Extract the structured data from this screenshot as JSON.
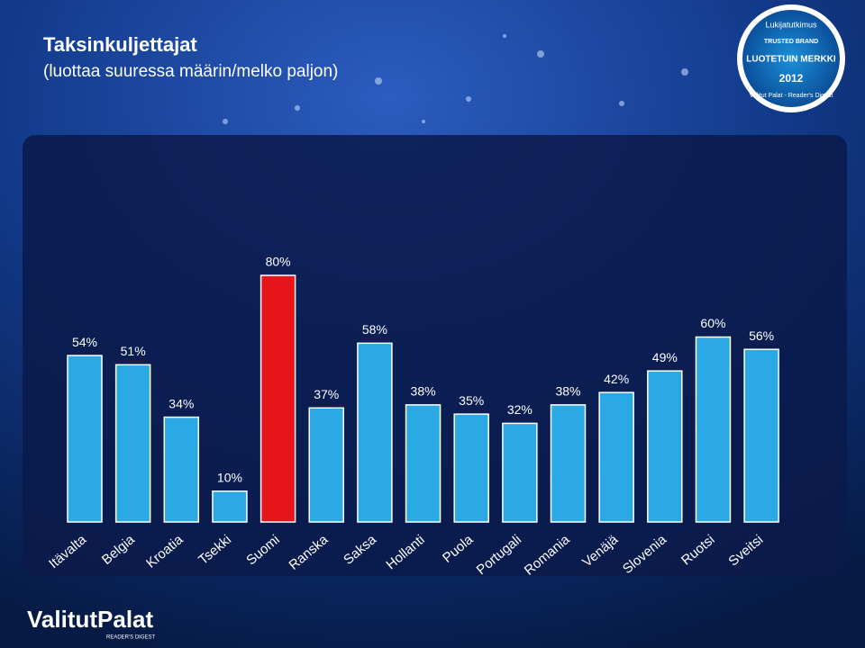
{
  "chart_data": {
    "type": "bar",
    "title": "Taksinkuljettajat",
    "subtitle": "(luottaa suuressa määrin/melko paljon)",
    "categories": [
      "Itävalta",
      "Belgia",
      "Kroatia",
      "Tsekki",
      "Suomi",
      "Ranska",
      "Saksa",
      "Hollanti",
      "Puola",
      "Portugali",
      "Romania",
      "Venäjä",
      "Slovenia",
      "Ruotsi",
      "Sveitsi"
    ],
    "values": [
      54,
      51,
      34,
      10,
      80,
      37,
      58,
      38,
      35,
      32,
      38,
      42,
      49,
      60,
      56
    ],
    "value_labels": [
      "54%",
      "51%",
      "34%",
      "10%",
      "80%",
      "37%",
      "58%",
      "38%",
      "35%",
      "32%",
      "38%",
      "42%",
      "49%",
      "60%",
      "56%"
    ],
    "colors": [
      "#2aa9e4",
      "#2aa9e4",
      "#2aa9e4",
      "#2aa9e4",
      "#e8141b",
      "#2aa9e4",
      "#2aa9e4",
      "#2aa9e4",
      "#2aa9e4",
      "#2aa9e4",
      "#2aa9e4",
      "#2aa9e4",
      "#2aa9e4",
      "#2aa9e4",
      "#2aa9e4"
    ]
  },
  "branding": {
    "badge_top": "Lukijatutkimus",
    "badge_brand": "TRUSTED BRAND",
    "badge_main": "LUOTETUIN MERKKI",
    "badge_year": "2012",
    "badge_ring": "Valitut Palat - Reader's Digest",
    "logo": "ValitutPalat",
    "logo_sub": "READER'S DIGEST"
  }
}
